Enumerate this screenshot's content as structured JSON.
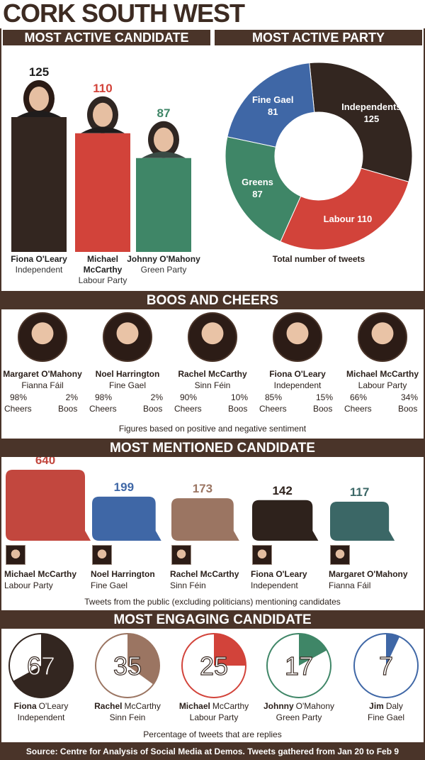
{
  "title": "CORK SOUTH WEST",
  "colors": {
    "dark": "#332620",
    "labour": "#d2433a",
    "green": "#3f8667",
    "finegael": "#3f67a6",
    "brown": "#9b7562",
    "teal": "#3b6766",
    "header": "#4a3429"
  },
  "sections": {
    "most_active_candidate": "MOST ACTIVE CANDIDATE",
    "most_active_party": "MOST ACTIVE PARTY",
    "boos_and_cheers": "BOOS AND CHEERS",
    "most_mentioned": "MOST MENTIONED CANDIDATE",
    "most_engaging": "MOST ENGAGING CANDIDATE"
  },
  "captions": {
    "party": "Total number of tweets",
    "boos": "Figures based on positive and negative sentiment",
    "mentioned": "Tweets from the public (excluding politicians) mentioning candidates",
    "engaging": "Percentage of tweets that are replies"
  },
  "labels": {
    "cheers": "Cheers",
    "boos": "Boos"
  },
  "source": "Source: Centre for Analysis of Social Media at Demos. Tweets gathered from Jan 20 to Feb 9",
  "chart_data": [
    {
      "type": "bar",
      "title": "MOST ACTIVE CANDIDATE",
      "categories": [
        "Fiona O'Leary",
        "Michael McCarthy",
        "Johnny O'Mahony"
      ],
      "value_labels": [
        "125",
        "110",
        "87"
      ],
      "values": [
        125,
        110,
        87
      ],
      "parties": [
        "Independent",
        "Labour Party",
        "Green Party"
      ],
      "name_lines": [
        [
          "Fiona O'Leary"
        ],
        [
          "Michael",
          "McCarthy"
        ],
        [
          "Johnny O'Mahony"
        ]
      ],
      "colors": [
        "#332620",
        "#d2433a",
        "#3f8667"
      ],
      "label_colors": [
        "#1e1e1e",
        "#d2433a",
        "#3f8667"
      ]
    },
    {
      "type": "pie",
      "title": "MOST ACTIVE PARTY",
      "caption": "Total number of tweets",
      "slices": [
        {
          "name": "Independents",
          "value": 125,
          "label": "125",
          "color": "#332620"
        },
        {
          "name": "Labour",
          "value": 110,
          "label": "110",
          "color": "#d2433a"
        },
        {
          "name": "Greens",
          "value": 87,
          "label": "87",
          "color": "#3f8667"
        },
        {
          "name": "Fine Gael",
          "value": 81,
          "label": "81",
          "color": "#3f67a6"
        }
      ]
    },
    {
      "type": "table",
      "title": "BOOS AND CHEERS",
      "rows": [
        {
          "name": "Margaret O'Mahony",
          "party": "Fianna Fáil",
          "cheers": "98%",
          "boos": "2%"
        },
        {
          "name": "Noel Harrington",
          "party": "Fine Gael",
          "cheers": "98%",
          "boos": "2%"
        },
        {
          "name": "Rachel McCarthy",
          "party": "Sinn Féin",
          "cheers": "90%",
          "boos": "10%"
        },
        {
          "name": "Fiona O'Leary",
          "party": "Independent",
          "cheers": "85%",
          "boos": "15%"
        },
        {
          "name": "Michael McCarthy",
          "party": "Labour Party",
          "cheers": "66%",
          "boos": "34%"
        }
      ]
    },
    {
      "type": "bar",
      "title": "MOST MENTIONED CANDIDATE",
      "categories": [
        "Michael McCarthy",
        "Noel Harrington",
        "Rachel McCarthy",
        "Fiona O'Leary",
        "Margaret O'Mahony"
      ],
      "parties": [
        "Labour Party",
        "Fine Gael",
        "Sinn Féin",
        "Independent",
        "Fianna Fáil"
      ],
      "values": [
        640,
        199,
        173,
        142,
        117
      ],
      "value_labels": [
        "640",
        "199",
        "173",
        "142",
        "117"
      ],
      "colors": [
        "#c2473e",
        "#3f67a6",
        "#9b7562",
        "#2e221c",
        "#3b6766"
      ]
    },
    {
      "type": "pie",
      "title": "MOST ENGAGING CANDIDATE",
      "caption": "Percentage of tweets that are replies",
      "items": [
        {
          "name_first": "Fiona",
          "name_last": "O'Leary",
          "party": "Independent",
          "value": 67,
          "label": "67",
          "color": "#332620"
        },
        {
          "name_first": "Rachel",
          "name_last": "McCarthy",
          "party": "Sinn Fein",
          "value": 35,
          "label": "35",
          "color": "#9b7562"
        },
        {
          "name_first": "Michael",
          "name_last": "McCarthy",
          "party": "Labour Party",
          "value": 25,
          "label": "25",
          "color": "#d2433a"
        },
        {
          "name_first": "Johnny",
          "name_last": "O'Mahony",
          "party": "Green Party",
          "value": 17,
          "label": "17",
          "color": "#3f8667"
        },
        {
          "name_first": "Jim",
          "name_last": "Daly",
          "party": "Fine Gael",
          "value": 7,
          "label": "7",
          "color": "#3f67a6"
        }
      ]
    }
  ]
}
